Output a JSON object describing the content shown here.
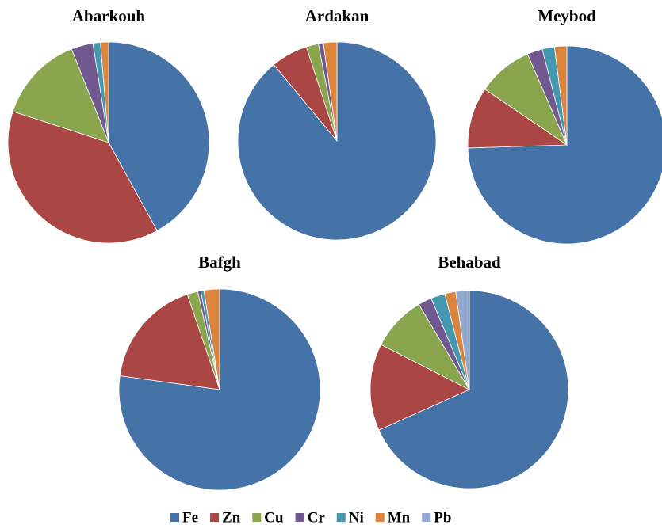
{
  "chart_data": [
    {
      "type": "pie",
      "title": "Abarkouh",
      "categories": [
        "Fe",
        "Zn",
        "Cu",
        "Cr",
        "Ni",
        "Mn"
      ],
      "values": [
        42,
        38,
        14,
        3.5,
        1.2,
        1.3
      ],
      "colors": [
        "#4572a7",
        "#aa4643",
        "#89a54e",
        "#71588f",
        "#4198af",
        "#db843d"
      ]
    },
    {
      "type": "pie",
      "title": "Ardakan",
      "categories": [
        "Fe",
        "Zn",
        "Cu",
        "Cr",
        "Mn"
      ],
      "values": [
        89,
        6,
        2,
        0.8,
        2.2
      ],
      "colors": [
        "#4572a7",
        "#aa4643",
        "#89a54e",
        "#71588f",
        "#db843d"
      ]
    },
    {
      "type": "pie",
      "title": "Meybod",
      "categories": [
        "Fe",
        "Zn",
        "Cu",
        "Cr",
        "Ni",
        "Mn"
      ],
      "values": [
        74.5,
        10,
        9,
        2.5,
        2,
        2
      ],
      "colors": [
        "#4572a7",
        "#aa4643",
        "#89a54e",
        "#71588f",
        "#4198af",
        "#db843d"
      ]
    },
    {
      "type": "pie",
      "title": "Bafgh",
      "categories": [
        "Fe",
        "Zn",
        "Cu",
        "Cr",
        "Ni",
        "Mn"
      ],
      "values": [
        77.2,
        17.6,
        1.7,
        0.5,
        0.5,
        2.5
      ],
      "colors": [
        "#4572a7",
        "#aa4643",
        "#89a54e",
        "#71588f",
        "#4198af",
        "#db843d"
      ]
    },
    {
      "type": "pie",
      "title": "Behabad",
      "categories": [
        "Fe",
        "Zn",
        "Cu",
        "Cr",
        "Ni",
        "Mn",
        "Pb"
      ],
      "values": [
        68.3,
        14.2,
        9,
        2.2,
        2.3,
        1.8,
        2.2
      ],
      "colors": [
        "#4572a7",
        "#aa4643",
        "#89a54e",
        "#71588f",
        "#4198af",
        "#db843d",
        "#93a9cf"
      ]
    }
  ]
}
